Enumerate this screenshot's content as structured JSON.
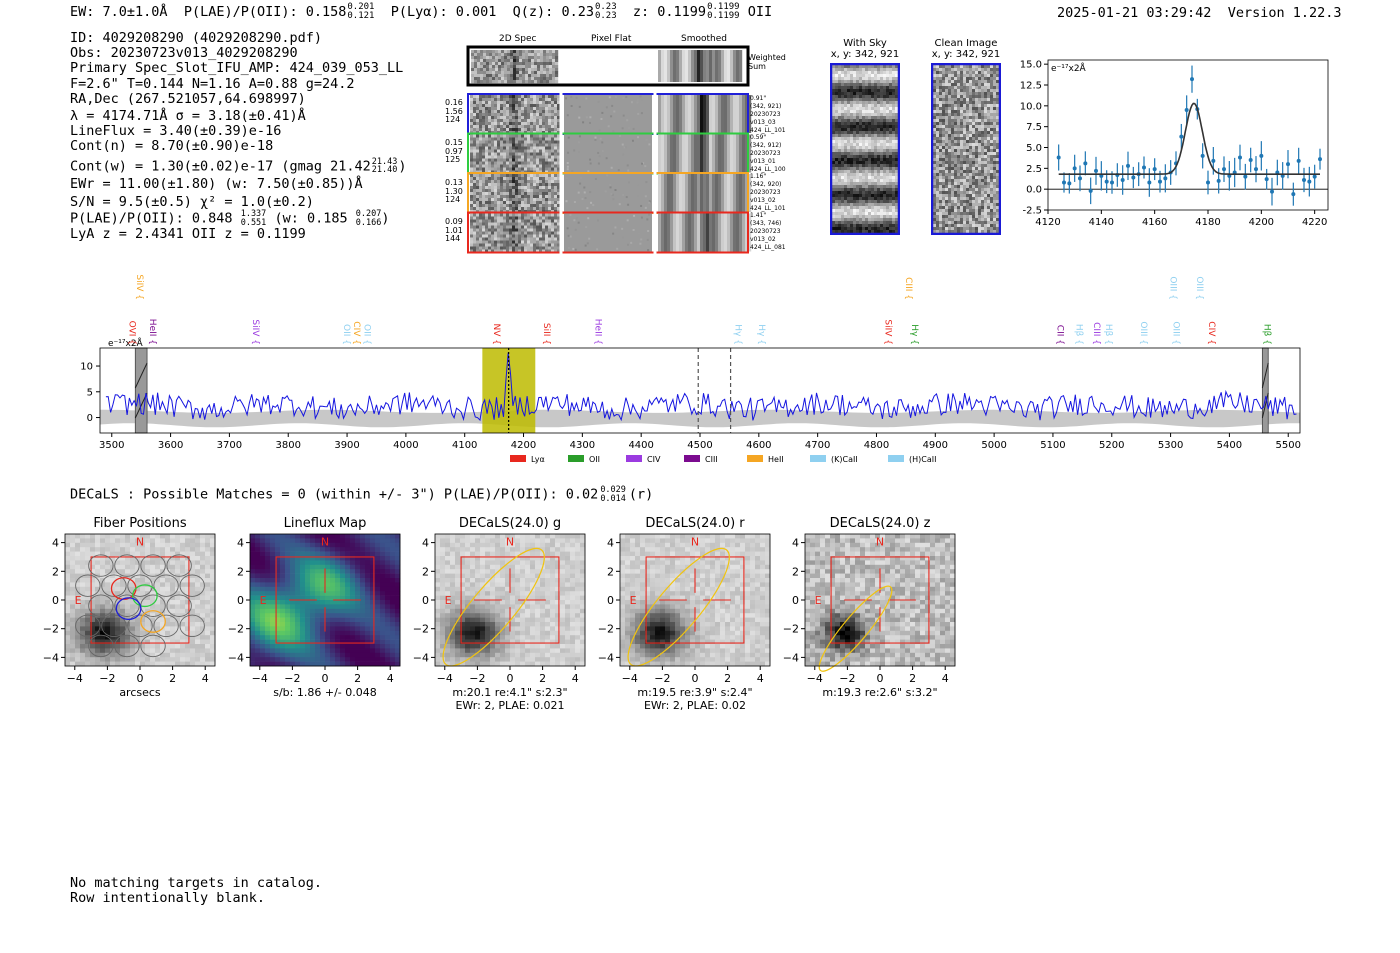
{
  "header": {
    "ew": "EW: 7.0±1.0Å",
    "plae": "P(LAE)/P(OII): 0.158",
    "plae_hi": "0.201",
    "plae_lo": "0.121",
    "plya": "P(Lyα): 0.001",
    "qz": "Q(z): 0.23",
    "qz_hi": "0.23",
    "qz_lo": "0.23",
    "z": "z: 0.1199",
    "z_hi": "0.1199",
    "z_lo": "0.1199",
    "z_line": "OII",
    "timestamp": "2025-01-21 03:29:42",
    "version": "Version 1.22.3"
  },
  "info": {
    "lines": [
      "ID: 4029208290 (4029208290.pdf)",
      "Obs: 20230723v013_4029208290",
      "Primary Spec_Slot_IFU_AMP: 424_039_053_LL",
      "F=2.6\"  T=0.144  N=1.16  A=0.88  g=24.2",
      "RA,Dec (267.521057,64.698997)",
      "λ = 4174.71Å   σ = 3.18(±0.41)Å",
      "LineFlux = 3.40(±0.39)e-16",
      "Cont(n) = 8.70(±0.90)e-18"
    ],
    "contw": "Cont(w) = 1.30(±0.02)e-17 (gmag 21.42",
    "contw_hi": "21.43",
    "contw_lo": "21.40",
    "contw_end": ")",
    "ewr": "EWr = 11.00(±1.80) (w: 7.50(±0.85))Å",
    "sn": "S/N = 9.5(±0.5)  χ² = 1.0(±0.2)",
    "plae2": "P(LAE)/P(OII): 0.848",
    "plae2_hi": "1.337",
    "plae2_lo": "0.551",
    "plae2_w": "(w: 0.185",
    "plae2_w_hi": "0.207",
    "plae2_w_lo": "0.166",
    "plae2_end": ")",
    "lya": "LyA z = 2.4341   OII z = 0.1199"
  },
  "cutouts": {
    "col_labels": [
      "2D Spec",
      "Pixel Flat",
      "Smoothed"
    ],
    "weighted_sum": "Weighted Sum",
    "rows": [
      {
        "left": [
          "0.16",
          "1.56",
          "124"
        ],
        "right": [
          "0.91\"",
          "(342, 921)",
          "20230723",
          "v013_03",
          "424_LL_101"
        ],
        "color": "#1f1fd8"
      },
      {
        "left": [
          "0.15",
          "0.97",
          "125"
        ],
        "right": [
          "0.59\"",
          "(342, 912)",
          "20230723",
          "v013_01",
          "424_LL_100"
        ],
        "color": "#2ecc40"
      },
      {
        "left": [
          "0.13",
          "1.30",
          "124"
        ],
        "right": [
          "1.16\"",
          "(342, 920)",
          "20230723",
          "v013_02",
          "424_LL_101"
        ],
        "color": "#f5a623"
      },
      {
        "left": [
          "0.09",
          "1.01",
          "144"
        ],
        "right": [
          "1.41\"",
          "(343, 746)",
          "20230723",
          "v013_02",
          "424_LL_081"
        ],
        "color": "#e8281e"
      }
    ]
  },
  "sky": {
    "with_sky": "With Sky",
    "with_sky_xy": "x, y: 342, 921",
    "clean": "Clean Image",
    "clean_xy": "x, y: 342, 921"
  },
  "zoom_chart": {
    "type": "scatter",
    "ylabel": "e⁻¹⁷x2Å",
    "xlim": [
      4120,
      4225
    ],
    "ylim": [
      -2.5,
      15.5
    ],
    "xticks": [
      4120,
      4140,
      4160,
      4180,
      4200,
      4220
    ],
    "yticks": [
      -2.5,
      0.0,
      2.5,
      5.0,
      7.5,
      10.0,
      12.5,
      15.0
    ],
    "ytick_labels": [
      "-2.5",
      "0.0",
      "2.5",
      "5.0",
      "7.5",
      "10.0",
      "12.5",
      "15.0"
    ],
    "points": [
      [
        4124,
        3.8
      ],
      [
        4126,
        0.8
      ],
      [
        4128,
        0.7
      ],
      [
        4130,
        2.5
      ],
      [
        4132,
        1.3
      ],
      [
        4134,
        3.1
      ],
      [
        4136,
        -0.2
      ],
      [
        4138,
        2.2
      ],
      [
        4140,
        1.6
      ],
      [
        4142,
        0.9
      ],
      [
        4144,
        0.8
      ],
      [
        4146,
        1.7
      ],
      [
        4148,
        1.1
      ],
      [
        4150,
        2.8
      ],
      [
        4152,
        1.4
      ],
      [
        4154,
        1.8
      ],
      [
        4156,
        2.6
      ],
      [
        4158,
        0.8
      ],
      [
        4160,
        2.4
      ],
      [
        4162,
        0.9
      ],
      [
        4164,
        1.3
      ],
      [
        4166,
        2.0
      ],
      [
        4168,
        3.1
      ],
      [
        4170,
        6.3
      ],
      [
        4172,
        9.5
      ],
      [
        4174,
        13.2
      ],
      [
        4176,
        9.6
      ],
      [
        4178,
        4.0
      ],
      [
        4180,
        0.8
      ],
      [
        4182,
        3.4
      ],
      [
        4184,
        1.0
      ],
      [
        4186,
        2.4
      ],
      [
        4188,
        1.6
      ],
      [
        4190,
        2.0
      ],
      [
        4192,
        3.8
      ],
      [
        4194,
        1.5
      ],
      [
        4196,
        3.5
      ],
      [
        4198,
        2.4
      ],
      [
        4200,
        4.0
      ],
      [
        4202,
        1.2
      ],
      [
        4204,
        -0.3
      ],
      [
        4206,
        2.0
      ],
      [
        4208,
        1.6
      ],
      [
        4210,
        3.0
      ],
      [
        4212,
        -0.6
      ],
      [
        4214,
        3.4
      ],
      [
        4216,
        1.1
      ],
      [
        4218,
        0.9
      ],
      [
        4220,
        1.5
      ],
      [
        4222,
        3.6
      ]
    ],
    "fit": {
      "base": 1.8,
      "peak": 8.5,
      "center": 4174.71,
      "sigma": 3.18
    }
  },
  "spectrum": {
    "type": "line",
    "ylabel": "e⁻¹⁷x2Å",
    "xlim": [
      3480,
      5520
    ],
    "ylim": [
      -3,
      13.5
    ],
    "xticks": [
      3500,
      3600,
      3700,
      3800,
      3900,
      4000,
      4100,
      4200,
      4300,
      4400,
      4500,
      4600,
      4700,
      4800,
      4900,
      5000,
      5100,
      5200,
      5300,
      5400,
      5500
    ],
    "yticks": [
      0,
      5,
      10
    ],
    "highlight": [
      4130,
      4220
    ],
    "dashed": [
      4174.7,
      4497,
      4552
    ],
    "hatched": [
      [
        3540,
        3560
      ],
      [
        5456,
        5466
      ]
    ],
    "lines": [
      {
        "label": "SiIV",
        "x": 3543,
        "row": 0,
        "color": "#f5a623"
      },
      {
        "label": "OVI",
        "x": 3530,
        "row": 1,
        "color": "#e8281e"
      },
      {
        "label": "HeII",
        "x": 3565,
        "row": 1,
        "color": "#7b0b8f"
      },
      {
        "label": "SiIV",
        "x": 3740,
        "row": 1,
        "color": "#9b3be0"
      },
      {
        "label": "OII",
        "x": 3895,
        "row": 1,
        "color": "#8fd0f0"
      },
      {
        "label": "CIV",
        "x": 3912,
        "row": 1,
        "color": "#f5a623"
      },
      {
        "label": "OII",
        "x": 3930,
        "row": 1,
        "color": "#8fd0f0"
      },
      {
        "label": "NV",
        "x": 4150,
        "row": 1,
        "color": "#e8281e"
      },
      {
        "label": "SiII",
        "x": 4235,
        "row": 1,
        "color": "#e8281e"
      },
      {
        "label": "HeII",
        "x": 4322,
        "row": 1,
        "color": "#9b3be0"
      },
      {
        "label": "Hγ",
        "x": 4560,
        "row": 1,
        "color": "#8fd0f0"
      },
      {
        "label": "Hγ",
        "x": 4600,
        "row": 1,
        "color": "#8fd0f0"
      },
      {
        "label": "SiIV",
        "x": 4815,
        "row": 1,
        "color": "#e8281e"
      },
      {
        "label": "CIII",
        "x": 4850,
        "row": 0,
        "color": "#f5a623"
      },
      {
        "label": "Hγ",
        "x": 4860,
        "row": 1,
        "color": "#2a9d2a"
      },
      {
        "label": "CII",
        "x": 5108,
        "row": 1,
        "color": "#7b0b8f"
      },
      {
        "label": "Hβ",
        "x": 5140,
        "row": 1,
        "color": "#8fd0f0"
      },
      {
        "label": "CIII",
        "x": 5170,
        "row": 1,
        "color": "#9b3be0"
      },
      {
        "label": "Hβ",
        "x": 5190,
        "row": 1,
        "color": "#8fd0f0"
      },
      {
        "label": "OIII",
        "x": 5250,
        "row": 1,
        "color": "#8fd0f0"
      },
      {
        "label": "OIII",
        "x": 5300,
        "row": 0,
        "color": "#8fd0f0"
      },
      {
        "label": "OIII",
        "x": 5305,
        "row": 1,
        "color": "#8fd0f0"
      },
      {
        "label": "OIII",
        "x": 5345,
        "row": 0,
        "color": "#8fd0f0"
      },
      {
        "label": "CIV",
        "x": 5365,
        "row": 1,
        "color": "#e8281e"
      },
      {
        "label": "Hβ",
        "x": 5460,
        "row": 1,
        "color": "#2a9d2a"
      }
    ],
    "legend": [
      {
        "label": "Lyα",
        "color": "#e8281e"
      },
      {
        "label": "OII",
        "color": "#2a9d2a"
      },
      {
        "label": "CIV",
        "color": "#9b3be0"
      },
      {
        "label": "CIII",
        "color": "#7b0b8f"
      },
      {
        "label": "HeII",
        "color": "#f5a623"
      },
      {
        "label": "(K)CaII",
        "color": "#8fd0f0"
      },
      {
        "label": "(H)CaII",
        "color": "#8fd0f0"
      }
    ]
  },
  "decals": {
    "summary": "DECaLS : Possible Matches = 0 (within +/- 3\")  P(LAE)/P(OII): 0.02",
    "summary_hi": "0.029",
    "summary_lo": "0.014",
    "summary_end": "(r)",
    "panels": [
      {
        "title": "Fiber Positions",
        "foot1": "arcsecs",
        "foot2": "",
        "kind": "fiber"
      },
      {
        "title": "Lineflux Map",
        "foot1": "s/b: 1.86 +/- 0.048",
        "foot2": "",
        "kind": "flux"
      },
      {
        "title": "DECaLS(24.0) g",
        "foot1": "m:20.1   re:4.1\"  s:2.3\"",
        "foot2": "EWr: 2, PLAE: 0.021",
        "kind": "g"
      },
      {
        "title": "DECaLS(24.0) r",
        "foot1": "m:19.5   re:3.9\"  s:2.4\"",
        "foot2": "EWr: 2, PLAE: 0.02",
        "kind": "r"
      },
      {
        "title": "DECaLS(24.0) z",
        "foot1": "m:19.3   re:2.6\"  s:3.2\"",
        "foot2": "",
        "kind": "z"
      }
    ],
    "axis_ticks": [
      "−4",
      "−2",
      "0",
      "2",
      "4"
    ],
    "north": "N",
    "east": "E"
  },
  "footer": {
    "line1": "No matching targets in catalog.",
    "line2": "Row intentionally blank."
  }
}
